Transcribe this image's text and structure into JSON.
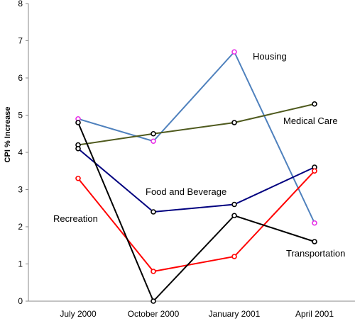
{
  "chart_data": {
    "type": "line",
    "categories": [
      "July 2000",
      "October 2000",
      "January 2001",
      "April 2001"
    ],
    "ylabel": "CPI % Increase",
    "xlabel": "",
    "title": "",
    "ylim": [
      0,
      8
    ],
    "yticks": [
      "0",
      "1",
      "2",
      "3",
      "4",
      "5",
      "6",
      "7",
      "8"
    ],
    "grid": false,
    "series": [
      {
        "name": "Housing",
        "values": [
          4.9,
          4.3,
          6.7,
          2.1
        ],
        "color": "#4f81bd",
        "marker": "#e830e8"
      },
      {
        "name": "Medical Care",
        "values": [
          4.2,
          4.5,
          4.8,
          5.3
        ],
        "color": "#4f5a1e",
        "marker": "#000000"
      },
      {
        "name": "Food and Beverage",
        "values": [
          4.1,
          2.4,
          2.6,
          3.6
        ],
        "color": "#00007f",
        "marker": "#000000"
      },
      {
        "name": "Recreation",
        "values": [
          3.3,
          0.8,
          1.2,
          3.5
        ],
        "color": "#ff0000",
        "marker": "#ff0000"
      },
      {
        "name": "Transportation",
        "values": [
          4.8,
          0.0,
          2.3,
          1.6
        ],
        "color": "#000000",
        "marker": "#000000"
      }
    ]
  }
}
